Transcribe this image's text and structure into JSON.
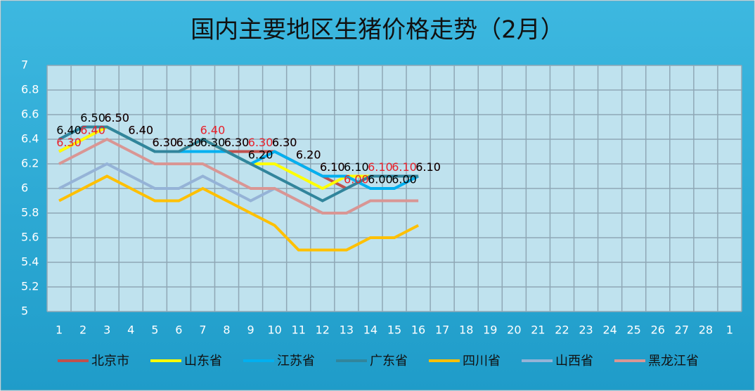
{
  "chart_data": {
    "type": "line",
    "title": "国内主要地区生猪价格走势（2月）",
    "categories": [
      "1",
      "2",
      "3",
      "4",
      "5",
      "6",
      "7",
      "8",
      "9",
      "10",
      "11",
      "12",
      "13",
      "14",
      "15",
      "16",
      "17",
      "18",
      "19",
      "20",
      "21",
      "22",
      "23",
      "24",
      "25",
      "26",
      "27",
      "28",
      "1"
    ],
    "ylim": [
      5,
      7
    ],
    "yticks": [
      5,
      5.2,
      5.4,
      5.6,
      5.8,
      6,
      6.2,
      6.4,
      6.6,
      6.8,
      7
    ],
    "grid": true,
    "legend": "bottom",
    "series": [
      {
        "name": "北京市",
        "color": "#c0504d",
        "values": [
          6.3,
          6.4,
          6.5,
          6.4,
          6.3,
          6.3,
          6.4,
          6.3,
          6.3,
          6.3,
          6.2,
          6.1,
          6.0,
          6.1,
          6.1,
          6.1,
          null,
          null,
          null,
          null,
          null,
          null,
          null,
          null,
          null,
          null,
          null,
          null,
          null
        ],
        "value_labels": [
          "6.30",
          "6.40",
          "6.50",
          "6.40",
          "6.30",
          "6.30",
          "6.40",
          "6.30",
          "6.30",
          "6.30",
          "6.20",
          "6.10",
          "6.00",
          "6.10",
          "6.10",
          "6.10",
          null,
          null,
          null,
          null,
          null,
          null,
          null,
          null,
          null,
          null,
          null,
          null,
          null
        ],
        "label_color": "#e8202a"
      },
      {
        "name": "山东省",
        "color": "#ffff00",
        "values": [
          6.3,
          6.4,
          6.5,
          6.4,
          6.3,
          6.3,
          6.4,
          6.3,
          6.2,
          6.2,
          6.1,
          6.0,
          6.1,
          6.1,
          6.1,
          6.1,
          null,
          null,
          null,
          null,
          null,
          null,
          null,
          null,
          null,
          null,
          null,
          null,
          null
        ]
      },
      {
        "name": "江苏省",
        "color": "#00b0f0",
        "values": [
          6.4,
          6.5,
          6.5,
          6.4,
          6.3,
          6.3,
          6.3,
          6.3,
          6.2,
          6.3,
          6.2,
          6.1,
          6.1,
          6.0,
          6.0,
          6.1,
          null,
          null,
          null,
          null,
          null,
          null,
          null,
          null,
          null,
          null,
          null,
          null,
          null
        ],
        "value_labels": [
          "6.40",
          "6.50",
          "6.50",
          "6.40",
          "6.30",
          "6.30",
          "6.30",
          "6.30",
          "6.20",
          "6.30",
          "6.20",
          "6.10",
          "6.10",
          "6.00",
          "6.00",
          "6.10",
          null,
          null,
          null,
          null,
          null,
          null,
          null,
          null,
          null,
          null,
          null,
          null,
          null
        ],
        "label_color": "#000000"
      },
      {
        "name": "广东省",
        "color": "#31859c",
        "values": [
          6.4,
          6.5,
          6.5,
          6.4,
          6.3,
          6.3,
          6.4,
          6.3,
          6.2,
          6.1,
          6.0,
          5.9,
          6.0,
          6.1,
          6.1,
          6.1,
          null,
          null,
          null,
          null,
          null,
          null,
          null,
          null,
          null,
          null,
          null,
          null,
          null
        ]
      },
      {
        "name": "四川省",
        "color": "#ffc000",
        "values": [
          5.9,
          6.0,
          6.1,
          6.0,
          5.9,
          5.9,
          6.0,
          5.9,
          5.8,
          5.7,
          5.5,
          5.5,
          5.5,
          5.6,
          5.6,
          5.7,
          null,
          null,
          null,
          null,
          null,
          null,
          null,
          null,
          null,
          null,
          null,
          null,
          null
        ]
      },
      {
        "name": "山西省",
        "color": "#95b3d7",
        "values": [
          6.0,
          6.1,
          6.2,
          6.1,
          6.0,
          6.0,
          6.1,
          6.0,
          5.9,
          6.0,
          5.9,
          5.8,
          5.8,
          5.9,
          5.9,
          5.9,
          null,
          null,
          null,
          null,
          null,
          null,
          null,
          null,
          null,
          null,
          null,
          null,
          null
        ]
      },
      {
        "name": "黑龙江省",
        "color": "#d99694",
        "values": [
          6.2,
          6.3,
          6.4,
          6.3,
          6.2,
          6.2,
          6.2,
          6.1,
          6.0,
          6.0,
          5.9,
          5.8,
          5.8,
          5.9,
          5.9,
          5.9,
          null,
          null,
          null,
          null,
          null,
          null,
          null,
          null,
          null,
          null,
          null,
          null,
          null
        ]
      }
    ]
  }
}
